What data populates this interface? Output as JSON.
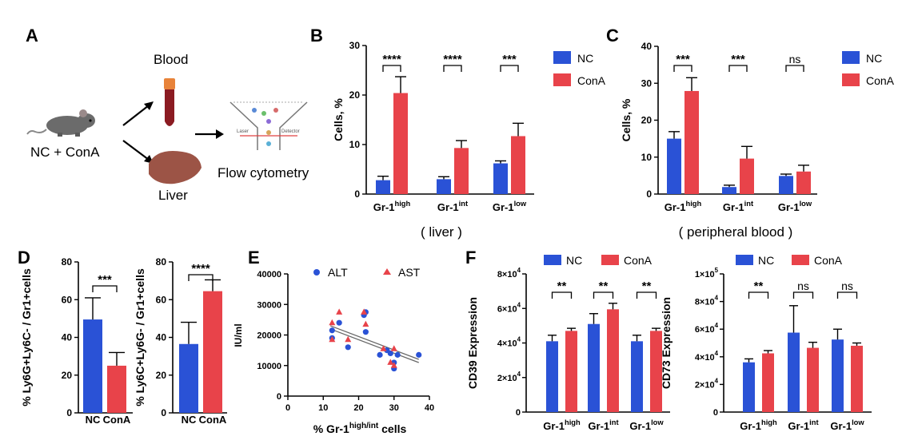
{
  "panels": {
    "A": {
      "letter": "A",
      "labels": {
        "blood": "Blood",
        "group": "NC + ConA",
        "liver": "Liver",
        "flow": "Flow cytometry",
        "laser": "Laser",
        "detector": "Detector"
      }
    },
    "B": {
      "letter": "B",
      "caption": "( liver )"
    },
    "C": {
      "letter": "C",
      "caption": "( peripheral blood )"
    },
    "D": {
      "letter": "D"
    },
    "E": {
      "letter": "E"
    },
    "F": {
      "letter": "F"
    }
  },
  "colors": {
    "NC": "#2a52d6",
    "ConA": "#e8434a",
    "line": "#666666"
  },
  "chart_data": [
    {
      "id": "B",
      "type": "bar",
      "categories": [
        {
          "base": "Gr-1",
          "sup": "high"
        },
        {
          "base": "Gr-1",
          "sup": "int"
        },
        {
          "base": "Gr-1",
          "sup": "low"
        }
      ],
      "series": [
        {
          "name": "NC",
          "values": [
            2.8,
            3.0,
            6.2
          ],
          "errors": [
            0.8,
            0.5,
            0.5
          ]
        },
        {
          "name": "ConA",
          "values": [
            20.4,
            9.3,
            11.7
          ],
          "errors": [
            3.3,
            1.5,
            2.6
          ]
        }
      ],
      "ylabel": "Cells, %",
      "ylim": [
        0,
        30
      ],
      "yticks": [
        0,
        10,
        20,
        30
      ],
      "significance": [
        "****",
        "****",
        "***"
      ],
      "legend": "top-right"
    },
    {
      "id": "C",
      "type": "bar",
      "categories": [
        {
          "base": "Gr-1",
          "sup": "high"
        },
        {
          "base": "Gr-1",
          "sup": "int"
        },
        {
          "base": "Gr-1",
          "sup": "low"
        }
      ],
      "series": [
        {
          "name": "NC",
          "values": [
            15.0,
            1.9,
            4.9
          ],
          "errors": [
            1.9,
            0.5,
            0.5
          ]
        },
        {
          "name": "ConA",
          "values": [
            27.9,
            9.6,
            6.1
          ],
          "errors": [
            3.6,
            3.3,
            1.7
          ]
        }
      ],
      "ylabel": "Cells, %",
      "ylim": [
        0,
        40
      ],
      "yticks": [
        0,
        10,
        20,
        30,
        40
      ],
      "significance": [
        "***",
        "***",
        "ns"
      ],
      "legend": "top-right"
    },
    {
      "id": "D1",
      "type": "bar",
      "categories": [
        {
          "base": "NC",
          "sup": ""
        },
        {
          "base": "ConA",
          "sup": ""
        }
      ],
      "series": [
        {
          "name": "",
          "values": [
            49.5,
            25.0
          ],
          "errors": [
            11.5,
            7.0
          ]
        }
      ],
      "ylabel": "% Ly6G+Ly6C- / Gr1+cells",
      "ylim": [
        0,
        80
      ],
      "yticks": [
        0,
        20,
        40,
        60,
        80
      ],
      "significance": [
        "***"
      ]
    },
    {
      "id": "D2",
      "type": "bar",
      "categories": [
        {
          "base": "NC",
          "sup": ""
        },
        {
          "base": "ConA",
          "sup": ""
        }
      ],
      "series": [
        {
          "name": "",
          "values": [
            36.5,
            64.5
          ],
          "errors": [
            11.5,
            6.0
          ]
        }
      ],
      "ylabel": "% Ly6C+Ly6G- / Gr1+cells",
      "ylim": [
        0,
        80
      ],
      "yticks": [
        0,
        20,
        40,
        60,
        80
      ],
      "significance": [
        "****"
      ]
    },
    {
      "id": "E",
      "type": "scatter",
      "series": [
        {
          "name": "ALT",
          "marker": "circle",
          "points": [
            [
              12.5,
              21500
            ],
            [
              12.5,
              19000
            ],
            [
              14.5,
              24000
            ],
            [
              17,
              16000
            ],
            [
              21.5,
              26500
            ],
            [
              22,
              27500
            ],
            [
              22,
              21000
            ],
            [
              26,
              13500
            ],
            [
              28,
              15000
            ],
            [
              29,
              14000
            ],
            [
              30,
              11000
            ],
            [
              30,
              9000
            ],
            [
              31,
              13500
            ],
            [
              37,
              13500
            ]
          ]
        },
        {
          "name": "AST",
          "marker": "triangle",
          "points": [
            [
              12.5,
              24000
            ],
            [
              12.5,
              18500
            ],
            [
              14.5,
              27500
            ],
            [
              17,
              18500
            ],
            [
              21.5,
              27500
            ],
            [
              22,
              23500
            ],
            [
              27,
              15500
            ],
            [
              29,
              11000
            ],
            [
              30,
              15500
            ],
            [
              30,
              10000
            ]
          ]
        }
      ],
      "fit": {
        "x": [
          12,
          37
        ],
        "y": [
          22500,
          11500
        ]
      },
      "xlabel": {
        "base": "% Gr-1",
        "sup": "high/int",
        "tail": " cells"
      },
      "ylabel": "IU/ml",
      "xlim": [
        0,
        40
      ],
      "ylim": [
        0,
        40000
      ],
      "xticks": [
        0,
        10,
        20,
        30,
        40
      ],
      "yticks": [
        0,
        10000,
        20000,
        30000,
        40000
      ],
      "legend": "top"
    },
    {
      "id": "F1",
      "type": "bar",
      "categories": [
        {
          "base": "Gr-1",
          "sup": "high"
        },
        {
          "base": "Gr-1",
          "sup": "int"
        },
        {
          "base": "Gr-1",
          "sup": "low"
        }
      ],
      "series": [
        {
          "name": "NC",
          "values": [
            41000,
            51000,
            41000
          ],
          "errors": [
            3500,
            6000,
            3500
          ]
        },
        {
          "name": "ConA",
          "values": [
            47000,
            59500,
            47000
          ],
          "errors": [
            1500,
            3500,
            1500
          ]
        }
      ],
      "ylabel": "CD39 Expression",
      "ylim": [
        0,
        80000
      ],
      "yticks": [
        {
          "v": 0,
          "m": "0",
          "e": ""
        },
        {
          "v": 20000,
          "m": "2×10",
          "e": "4"
        },
        {
          "v": 40000,
          "m": "4×10",
          "e": "4"
        },
        {
          "v": 60000,
          "m": "6×10",
          "e": "4"
        },
        {
          "v": 80000,
          "m": "8×10",
          "e": "4"
        }
      ],
      "significance": [
        "**",
        "**",
        "**"
      ],
      "legend": "top"
    },
    {
      "id": "F2",
      "type": "bar",
      "categories": [
        {
          "base": "Gr-1",
          "sup": "high"
        },
        {
          "base": "Gr-1",
          "sup": "int"
        },
        {
          "base": "Gr-1",
          "sup": "low"
        }
      ],
      "series": [
        {
          "name": "NC",
          "values": [
            36000,
            57500,
            52500
          ],
          "errors": [
            2500,
            19500,
            7500
          ]
        },
        {
          "name": "ConA",
          "values": [
            42500,
            46500,
            48000
          ],
          "errors": [
            2000,
            4000,
            2000
          ]
        }
      ],
      "ylabel": "CD73 Expression",
      "ylim": [
        0,
        100000
      ],
      "yticks": [
        {
          "v": 0,
          "m": "0",
          "e": ""
        },
        {
          "v": 20000,
          "m": "2×10",
          "e": "4"
        },
        {
          "v": 40000,
          "m": "4×10",
          "e": "4"
        },
        {
          "v": 60000,
          "m": "6×10",
          "e": "4"
        },
        {
          "v": 80000,
          "m": "8×10",
          "e": "4"
        },
        {
          "v": 100000,
          "m": "1×10",
          "e": "5"
        }
      ],
      "significance": [
        "**",
        "ns",
        "ns"
      ],
      "legend": "top"
    }
  ]
}
